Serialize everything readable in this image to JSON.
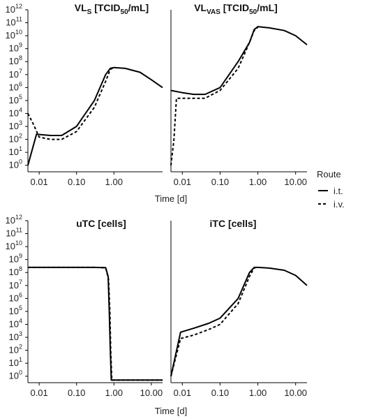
{
  "chart_data": [
    {
      "type": "line",
      "title": "VL",
      "title_sub": "S",
      "title_rest": " [TCID",
      "title_sub2": "50",
      "title_end": "/mL]",
      "xlabel": "Time [d]",
      "xscale": "log",
      "yscale": "log",
      "xlim": [
        0.005,
        20
      ],
      "ylim": [
        1,
        1000000000000.0
      ],
      "xticks": [
        0.01,
        0.1,
        1
      ],
      "xtick_labels": [
        "0.01",
        "0.10",
        "1.00"
      ],
      "yticks_exp": [
        0,
        1,
        2,
        3,
        4,
        5,
        6,
        7,
        8,
        9,
        10,
        11,
        12
      ],
      "series": [
        {
          "name": "i.t.",
          "dash": "solid",
          "x": [
            0.005,
            0.0085,
            0.02,
            0.04,
            0.1,
            0.3,
            0.6,
            0.8,
            1.0,
            2,
            5,
            10,
            20
          ],
          "y": [
            1,
            250.0,
            200.0,
            200.0,
            1000.0,
            100000.0,
            10000000.0,
            30000000.0,
            35000000.0,
            30000000.0,
            15000000.0,
            4000000.0,
            1000000.0
          ]
        },
        {
          "name": "i.v.",
          "dash": "dashed",
          "x": [
            0.005,
            0.007,
            0.01,
            0.02,
            0.04,
            0.1,
            0.3,
            0.6,
            0.8,
            1.0
          ],
          "y": [
            10000.0,
            1500.0,
            150.0,
            100.0,
            100.0,
            400.0,
            30000.0,
            3000000.0,
            25000000.0,
            35000000.0
          ]
        }
      ]
    },
    {
      "type": "line",
      "title": "VL",
      "title_sub": "VAS",
      "title_rest": " [TCID",
      "title_sub2": "50",
      "title_end": "/mL]",
      "xlabel": "Time [d]",
      "xscale": "log",
      "yscale": "log",
      "xlim": [
        0.005,
        20
      ],
      "ylim": [
        1,
        1000000000000.0
      ],
      "xticks": [
        0.01,
        0.1,
        1,
        10
      ],
      "xtick_labels": [
        "0.01",
        "0.10",
        "1.00",
        "10.00"
      ],
      "series": [
        {
          "name": "i.t.",
          "dash": "solid",
          "x": [
            0.005,
            0.01,
            0.02,
            0.04,
            0.1,
            0.3,
            0.6,
            0.8,
            1.0,
            2,
            5,
            10,
            20
          ],
          "y": [
            600000.0,
            400000.0,
            300000.0,
            300000.0,
            1000000.0,
            100000000.0,
            3000000000.0,
            30000000000.0,
            50000000000.0,
            40000000000.0,
            25000000000.0,
            10000000000.0,
            2000000000.0
          ]
        },
        {
          "name": "i.v.",
          "dash": "dashed",
          "x": [
            0.005,
            0.006,
            0.007,
            0.01,
            0.02,
            0.04,
            0.1,
            0.3,
            0.6,
            0.8,
            1.0
          ],
          "y": [
            1,
            100.0,
            150000.0,
            150000.0,
            150000.0,
            150000.0,
            600000.0,
            30000000.0,
            3000000000.0,
            25000000000.0,
            45000000000.0
          ]
        }
      ]
    },
    {
      "type": "line",
      "title": "uTC [cells]",
      "xlabel": "Time [d]",
      "xscale": "log",
      "yscale": "log",
      "xlim": [
        0.005,
        20
      ],
      "ylim": [
        1,
        1000000000000.0
      ],
      "xticks": [
        0.01,
        0.1,
        1,
        10
      ],
      "xtick_labels": [
        "0.01",
        "0.10",
        "1.00",
        "10.00"
      ],
      "series": [
        {
          "name": "i.t.",
          "dash": "solid",
          "x": [
            0.005,
            0.1,
            0.3,
            0.6,
            0.7,
            0.75,
            0.8,
            0.85,
            20
          ],
          "y": [
            250000000.0,
            250000000.0,
            250000000.0,
            240000000.0,
            50000000.0,
            100000.0,
            100.0,
            0.5,
            0.5
          ]
        },
        {
          "name": "i.v.",
          "dash": "dashed",
          "x": [
            0.005,
            0.1,
            0.3,
            0.6,
            0.72,
            0.78,
            0.82,
            0.88,
            20
          ],
          "y": [
            250000000.0,
            250000000.0,
            250000000.0,
            230000000.0,
            30000000.0,
            100000.0,
            100.0,
            0.5,
            0.5
          ]
        }
      ]
    },
    {
      "type": "line",
      "title": "iTC [cells]",
      "xlabel": "Time [d]",
      "xscale": "log",
      "yscale": "log",
      "xlim": [
        0.005,
        20
      ],
      "ylim": [
        1,
        1000000000000.0
      ],
      "xticks": [
        0.01,
        0.1,
        1,
        10
      ],
      "xtick_labels": [
        "0.01",
        "0.10",
        "1.00",
        "10.00"
      ],
      "series": [
        {
          "name": "i.t.",
          "dash": "solid",
          "x": [
            0.005,
            0.009,
            0.02,
            0.05,
            0.1,
            0.3,
            0.6,
            0.8,
            1.0,
            2,
            5,
            10,
            20
          ],
          "y": [
            1,
            2500.0,
            5000.0,
            12000.0,
            30000.0,
            1000000.0,
            100000000.0,
            250000000.0,
            250000000.0,
            220000000.0,
            150000000.0,
            60000000.0,
            10000000.0
          ]
        },
        {
          "name": "i.v.",
          "dash": "dashed",
          "x": [
            0.005,
            0.009,
            0.02,
            0.05,
            0.1,
            0.3,
            0.6,
            0.8,
            1.0
          ],
          "y": [
            1,
            800.0,
            1500.0,
            4000.0,
            10000.0,
            400000.0,
            50000000.0,
            230000000.0,
            250000000.0
          ]
        }
      ]
    }
  ],
  "legend": {
    "title": "Route",
    "items": [
      {
        "label": "i.t.",
        "dash": "solid"
      },
      {
        "label": "i.v.",
        "dash": "dashed"
      }
    ]
  },
  "ytick_base": "10"
}
